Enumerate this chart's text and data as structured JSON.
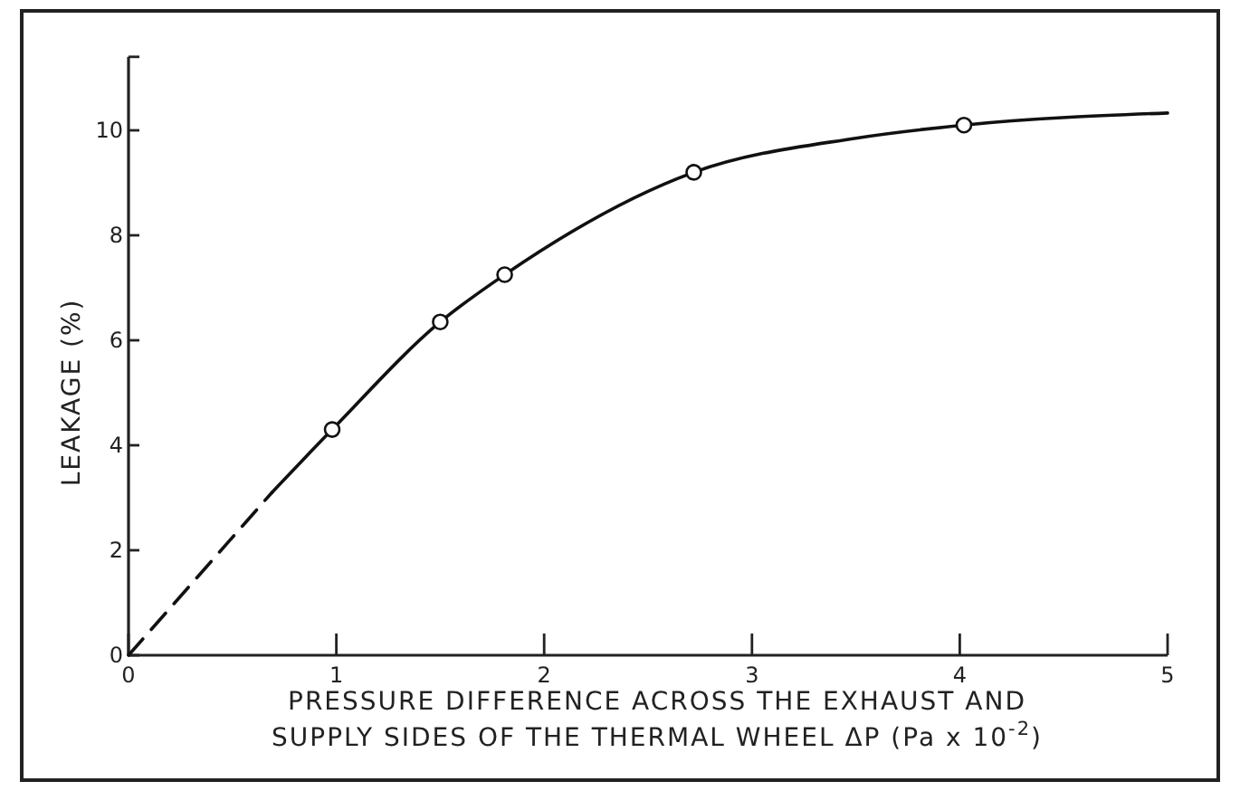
{
  "chart_data": {
    "type": "line",
    "xlabel": "PRESSURE DIFFERENCE ACROSS THE EXHAUST AND\nSUPPLY SIDES OF THE THERMAL WHEEL ΔP (Pa x 10$^{-2}$)",
    "ylabel": "LEAKAGE (%)",
    "xlim": [
      0,
      5
    ],
    "ylim": [
      0,
      11.4
    ],
    "xticks": [
      0,
      1,
      2,
      3,
      4,
      5
    ],
    "yticks": [
      0,
      2,
      4,
      6,
      8,
      10
    ],
    "grid": false,
    "series": [
      {
        "color": "#111111",
        "line_style": "dashed",
        "marker": "none",
        "x": [
          0,
          0.69
        ],
        "values": [
          0,
          3.1
        ]
      },
      {
        "color": "#111111",
        "line_style": "solid",
        "marker": "none",
        "x": [
          0.69,
          0.98,
          1.5,
          1.81,
          2.72,
          3.5,
          4.02,
          5
        ],
        "values": [
          3.1,
          4.3,
          6.35,
          7.25,
          9.2,
          9.85,
          10.1,
          10.33
        ]
      },
      {
        "type": "scatter",
        "color": "#111111",
        "marker": "circle",
        "x": [
          0.98,
          1.5,
          1.81,
          2.72,
          4.02
        ],
        "values": [
          4.3,
          6.35,
          7.25,
          9.2,
          10.1
        ]
      }
    ]
  }
}
